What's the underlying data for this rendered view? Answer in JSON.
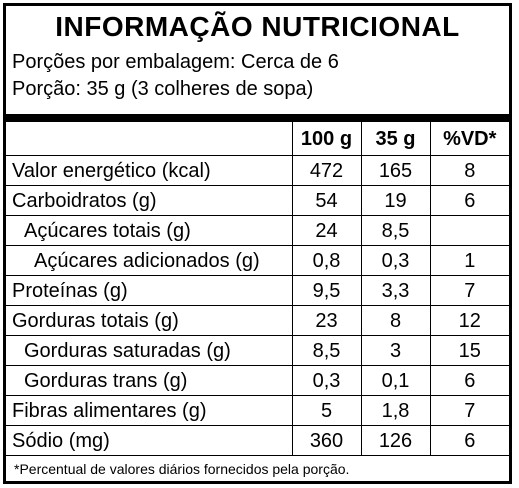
{
  "title": "INFORMAÇÃO NUTRICIONAL",
  "servings_per_package": "Porções por embalagem: Cerca de 6",
  "serving_size": "Porção: 35 g (3 colheres de sopa)",
  "columns": [
    "100 g",
    "35 g",
    "%VD*"
  ],
  "rows": [
    {
      "name": "Valor energético (kcal)",
      "per100g": "472",
      "per35g": "165",
      "vd": "8"
    },
    {
      "name": "Carboidratos (g)",
      "per100g": "54",
      "per35g": "19",
      "vd": "6"
    },
    {
      "name": "Açúcares totais (g)",
      "per100g": "24",
      "per35g": "8,5",
      "vd": ""
    },
    {
      "name": "Açúcares adicionados (g)",
      "per100g": "0,8",
      "per35g": "0,3",
      "vd": "1"
    },
    {
      "name": "Proteínas (g)",
      "per100g": "9,5",
      "per35g": "3,3",
      "vd": "7"
    },
    {
      "name": "Gorduras totais (g)",
      "per100g": "23",
      "per35g": "8",
      "vd": "12"
    },
    {
      "name": "Gorduras saturadas (g)",
      "per100g": "8,5",
      "per35g": "3",
      "vd": "15"
    },
    {
      "name": "Gorduras trans (g)",
      "per100g": "0,3",
      "per35g": "0,1",
      "vd": "6"
    },
    {
      "name": "Fibras alimentares (g)",
      "per100g": "5",
      "per35g": "1,8",
      "vd": "7"
    },
    {
      "name": "Sódio (mg)",
      "per100g": "360",
      "per35g": "126",
      "vd": "6"
    }
  ],
  "footnote": "*Percentual de valores diários fornecidos pela porção."
}
